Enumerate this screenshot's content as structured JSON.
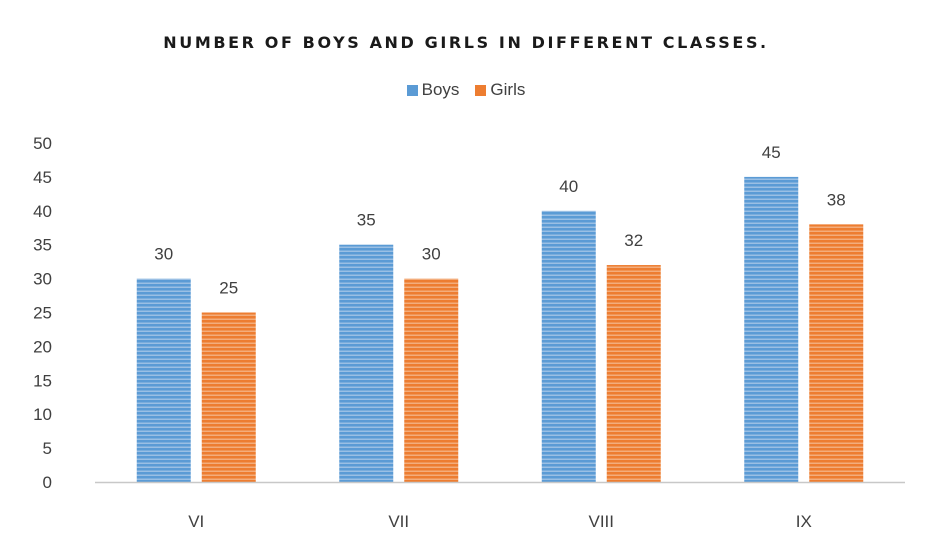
{
  "chart_data": {
    "type": "bar",
    "title": "NUMBER OF BOYS AND GIRLS IN DIFFERENT  CLASSES.",
    "xlabel": "",
    "ylabel": "",
    "categories": [
      "VI",
      "VII",
      "VIII",
      "IX"
    ],
    "series": [
      {
        "name": "Boys",
        "values": [
          30,
          35,
          40,
          45
        ],
        "color": "#5b9bd5"
      },
      {
        "name": "Girls",
        "values": [
          25,
          30,
          32,
          38
        ],
        "color": "#ed7d31"
      }
    ],
    "ylim": [
      0,
      50
    ],
    "yticks": [
      "0",
      "5",
      "10",
      "15",
      "20",
      "25",
      "30",
      "35",
      "40",
      "45",
      "50"
    ],
    "data_labels": true,
    "grid": false,
    "legend_position": "top"
  }
}
